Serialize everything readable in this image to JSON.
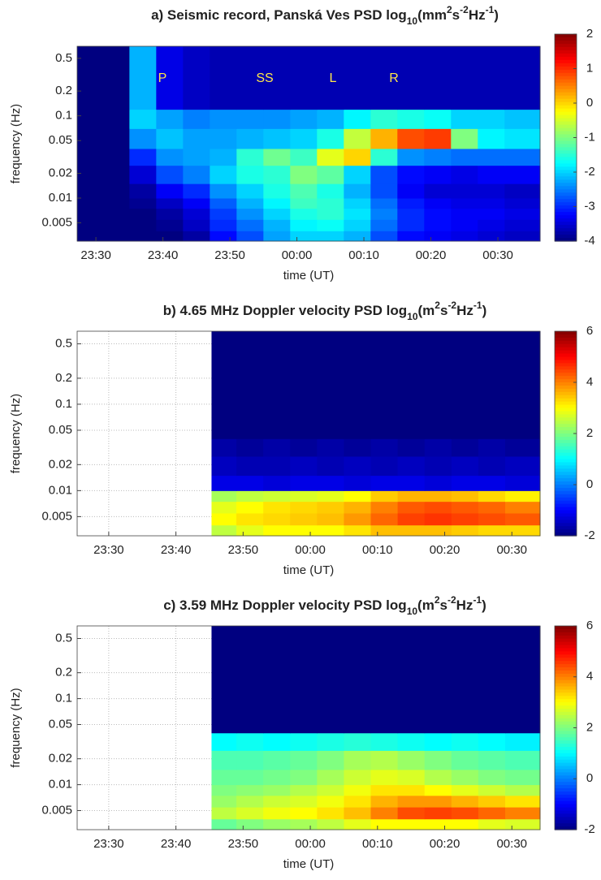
{
  "chart_data": [
    {
      "type": "heatmap",
      "title": [
        {
          "text": "a) Seismic record, Panská Ves PSD log",
          "pos": "base"
        },
        {
          "text": "10",
          "pos": "sub"
        },
        {
          "text": "(mm",
          "pos": "base"
        },
        {
          "text": "2",
          "pos": "sup"
        },
        {
          "text": "s",
          "pos": "base"
        },
        {
          "text": "-2",
          "pos": "sup"
        },
        {
          "text": "Hz",
          "pos": "base"
        },
        {
          "text": "-1",
          "pos": "sup"
        },
        {
          "text": ")",
          "pos": "base"
        }
      ],
      "x_label": "time (UT)",
      "y_label": "frequency (Hz)",
      "annotations": [
        "P",
        "SS",
        "L",
        "R"
      ],
      "xlim": [
        27.2,
        96.3
      ],
      "xticks": [
        {
          "value": 30,
          "label": "23:30"
        },
        {
          "value": 40,
          "label": "23:40"
        },
        {
          "value": 50,
          "label": "23:50"
        },
        {
          "value": 60,
          "label": "00:00"
        },
        {
          "value": 70,
          "label": "00:10"
        },
        {
          "value": 80,
          "label": "00:20"
        },
        {
          "value": 90,
          "label": "00:30"
        }
      ],
      "ylim": [
        0.003,
        0.7
      ],
      "yscale": "log",
      "yticks": [
        0.005,
        0.01,
        0.02,
        0.05,
        0.1,
        0.2,
        0.5
      ],
      "grid": true,
      "colormap": "jet",
      "clim": [
        -4,
        2
      ],
      "cticks": [
        -4,
        -3,
        -2,
        -1,
        0,
        1,
        2
      ],
      "xbins": [
        27.2,
        31,
        35,
        39,
        43,
        47,
        51,
        55,
        59,
        63,
        67,
        71,
        75,
        79,
        83,
        87,
        91,
        96.3
      ],
      "ybins": [
        0.003,
        0.004,
        0.0055,
        0.0075,
        0.01,
        0.015,
        0.025,
        0.04,
        0.07,
        0.12,
        0.7
      ],
      "values": [
        [
          -4,
          -4,
          -4,
          -4,
          -3.8,
          -3.2,
          -2.8,
          -2.3,
          -2,
          -2,
          -2.2,
          -2.8,
          -3.2,
          -3.3,
          -3.4,
          -3.5,
          -3.6
        ],
        [
          -4,
          -4,
          -4,
          -3.9,
          -3.6,
          -3,
          -2.6,
          -2.2,
          -1.8,
          -1.7,
          -2,
          -2.6,
          -3,
          -3.2,
          -3.3,
          -3.4,
          -3.5
        ],
        [
          -4,
          -4,
          -4,
          -3.8,
          -3.5,
          -2.9,
          -2.4,
          -2,
          -1.6,
          -1.5,
          -1.9,
          -2.5,
          -3,
          -3.2,
          -3.3,
          -3.3,
          -3.4
        ],
        [
          -4,
          -4,
          -3.9,
          -3.6,
          -3.3,
          -2.7,
          -2.2,
          -1.8,
          -1.4,
          -1.5,
          -2,
          -2.6,
          -3.1,
          -3.3,
          -3.4,
          -3.4,
          -3.5
        ],
        [
          -4,
          -4,
          -3.8,
          -3.3,
          -3,
          -2.4,
          -2,
          -1.6,
          -1.3,
          -1.6,
          -2.2,
          -2.8,
          -3.3,
          -3.5,
          -3.5,
          -3.5,
          -3.6
        ],
        [
          -4,
          -4,
          -3.5,
          -2.8,
          -2.5,
          -2,
          -1.6,
          -1.5,
          -1,
          -1.2,
          -2,
          -2.8,
          -3.2,
          -3.3,
          -3.4,
          -3.3,
          -3.3
        ],
        [
          -4,
          -4,
          -3,
          -2.4,
          -2.3,
          -2.2,
          -1.5,
          -1.1,
          -1.4,
          -0.4,
          0,
          -1.5,
          -2.4,
          -2.5,
          -2.6,
          -2.6,
          -2.6
        ],
        [
          -4,
          -4,
          -2.4,
          -2.1,
          -2.3,
          -2.3,
          -2.2,
          -2.1,
          -2,
          -1.6,
          -0.6,
          0.2,
          0.8,
          0.9,
          -1,
          -1.8,
          -1.9
        ],
        [
          -4,
          -4,
          -2,
          -2.3,
          -2.5,
          -2.4,
          -2.4,
          -2.4,
          -2.3,
          -2.2,
          -1.8,
          -1.5,
          -1.6,
          -1.7,
          -2,
          -2,
          -2.1
        ],
        [
          -4,
          -4,
          -2.2,
          -3.4,
          -3.6,
          -3.7,
          -3.7,
          -3.7,
          -3.7,
          -3.7,
          -3.7,
          -3.7,
          -3.7,
          -3.7,
          -3.7,
          -3.7,
          -3.7
        ]
      ]
    },
    {
      "type": "heatmap",
      "title": [
        {
          "text": "b) 4.65 MHz Doppler velocity PSD log",
          "pos": "base"
        },
        {
          "text": "10",
          "pos": "sub"
        },
        {
          "text": "(m",
          "pos": "base"
        },
        {
          "text": "2",
          "pos": "sup"
        },
        {
          "text": "s",
          "pos": "base"
        },
        {
          "text": "-2",
          "pos": "sup"
        },
        {
          "text": "Hz",
          "pos": "base"
        },
        {
          "text": "-1",
          "pos": "sup"
        },
        {
          "text": ")",
          "pos": "base"
        }
      ],
      "x_label": "time (UT)",
      "y_label": "frequency (Hz)",
      "xlim": [
        25.3,
        94.2
      ],
      "xticks": [
        {
          "value": 30,
          "label": "23:30"
        },
        {
          "value": 40,
          "label": "23:40"
        },
        {
          "value": 50,
          "label": "23:50"
        },
        {
          "value": 60,
          "label": "00:00"
        },
        {
          "value": 70,
          "label": "00:10"
        },
        {
          "value": 80,
          "label": "00:20"
        },
        {
          "value": 90,
          "label": "00:30"
        }
      ],
      "ylim": [
        0.003,
        0.7
      ],
      "yscale": "log",
      "yticks": [
        0.005,
        0.01,
        0.02,
        0.05,
        0.1,
        0.2,
        0.5
      ],
      "grid": true,
      "colormap": "jet",
      "clim": [
        -2,
        6
      ],
      "cticks": [
        -2,
        0,
        2,
        4,
        6
      ],
      "xbins": [
        45.3,
        49,
        53,
        57,
        61,
        65,
        69,
        73,
        77,
        81,
        85,
        89,
        94.2
      ],
      "ybins": [
        0.003,
        0.004,
        0.0055,
        0.0075,
        0.01,
        0.015,
        0.025,
        0.04,
        0.07,
        0.12,
        0.7
      ],
      "values": [
        [
          2.5,
          2.8,
          3,
          3,
          3,
          3.2,
          3.5,
          3.5,
          3.5,
          3.4,
          3.3,
          3.3
        ],
        [
          3,
          3.2,
          3.3,
          3.4,
          3.5,
          3.8,
          4.2,
          4.5,
          4.6,
          4.5,
          4.4,
          4.3
        ],
        [
          2.8,
          3,
          3.2,
          3.3,
          3.4,
          3.6,
          4,
          4.3,
          4.4,
          4.3,
          4.2,
          4
        ],
        [
          2.3,
          2.5,
          2.6,
          2.7,
          2.8,
          3,
          3.4,
          3.6,
          3.6,
          3.5,
          3.3,
          3.1
        ],
        [
          -1.2,
          -1.2,
          -1.3,
          -1.2,
          -1.2,
          -1.3,
          -1.2,
          -1.2,
          -1.3,
          -1.2,
          -1.2,
          -1.3
        ],
        [
          -1.5,
          -1.6,
          -1.6,
          -1.5,
          -1.6,
          -1.5,
          -1.6,
          -1.5,
          -1.6,
          -1.5,
          -1.6,
          -1.5
        ],
        [
          -1.7,
          -1.8,
          -1.7,
          -1.8,
          -1.7,
          -1.8,
          -1.7,
          -1.8,
          -1.7,
          -1.8,
          -1.7,
          -1.8
        ],
        [
          -2,
          -2,
          -2,
          -2,
          -2,
          -2,
          -2,
          -2,
          -2,
          -2,
          -2,
          -2
        ],
        [
          -2,
          -2,
          -2,
          -2,
          -2,
          -2,
          -2,
          -2,
          -2,
          -2,
          -2,
          -2
        ],
        [
          -2,
          -2,
          -2,
          -2,
          -2,
          -2,
          -2,
          -2,
          -2,
          -2,
          -2,
          -2
        ]
      ]
    },
    {
      "type": "heatmap",
      "title": [
        {
          "text": "c) 3.59 MHz Doppler velocity PSD log",
          "pos": "base"
        },
        {
          "text": "10",
          "pos": "sub"
        },
        {
          "text": "(m",
          "pos": "base"
        },
        {
          "text": "2",
          "pos": "sup"
        },
        {
          "text": "s",
          "pos": "base"
        },
        {
          "text": "-2",
          "pos": "sup"
        },
        {
          "text": "Hz",
          "pos": "base"
        },
        {
          "text": "-1",
          "pos": "sup"
        },
        {
          "text": ")",
          "pos": "base"
        }
      ],
      "x_label": "time (UT)",
      "y_label": "frequency (Hz)",
      "xlim": [
        25.3,
        94.2
      ],
      "xticks": [
        {
          "value": 30,
          "label": "23:30"
        },
        {
          "value": 40,
          "label": "23:40"
        },
        {
          "value": 50,
          "label": "23:50"
        },
        {
          "value": 60,
          "label": "00:00"
        },
        {
          "value": 70,
          "label": "00:10"
        },
        {
          "value": 80,
          "label": "00:20"
        },
        {
          "value": 90,
          "label": "00:30"
        }
      ],
      "ylim": [
        0.003,
        0.7
      ],
      "yscale": "log",
      "yticks": [
        0.005,
        0.01,
        0.02,
        0.05,
        0.1,
        0.2,
        0.5
      ],
      "grid": true,
      "colormap": "jet",
      "clim": [
        -2,
        6
      ],
      "cticks": [
        -2,
        0,
        2,
        4,
        6
      ],
      "xbins": [
        45.3,
        49,
        53,
        57,
        61,
        65,
        69,
        73,
        77,
        81,
        85,
        89,
        94.2
      ],
      "ybins": [
        0.003,
        0.004,
        0.0055,
        0.0075,
        0.01,
        0.015,
        0.025,
        0.04,
        0.07,
        0.12,
        0.7
      ],
      "values": [
        [
          1.8,
          2,
          2.2,
          2.3,
          2.5,
          2.8,
          3,
          3,
          3,
          3,
          2.8,
          2.7
        ],
        [
          2.5,
          2.7,
          2.9,
          3,
          3.2,
          3.5,
          4,
          4.4,
          4.5,
          4.4,
          4.2,
          4
        ],
        [
          2.2,
          2.4,
          2.6,
          2.7,
          2.9,
          3.2,
          3.6,
          3.8,
          3.8,
          3.6,
          3.4,
          3.2
        ],
        [
          2,
          2.1,
          2.2,
          2.4,
          2.6,
          2.9,
          3.2,
          3.2,
          3,
          2.8,
          2.6,
          2.4
        ],
        [
          1.8,
          1.8,
          1.9,
          2,
          2.3,
          2.6,
          2.8,
          2.7,
          2.4,
          2.2,
          2,
          1.9
        ],
        [
          1.6,
          1.6,
          1.7,
          1.8,
          2,
          2.3,
          2.4,
          2.2,
          2,
          1.8,
          1.7,
          1.6
        ],
        [
          1,
          1.1,
          1,
          1.1,
          1.2,
          1.3,
          1.2,
          1.1,
          1,
          1.1,
          1,
          0.9
        ],
        [
          -2,
          -2,
          -2,
          -2,
          -2,
          -2,
          -2,
          -2,
          -2,
          -2,
          -2,
          -2
        ],
        [
          -2,
          -2,
          -2,
          -2,
          -2,
          -2,
          -2,
          -2,
          -2,
          -2,
          -2,
          -2
        ],
        [
          -2,
          -2,
          -2,
          -2,
          -2,
          -2,
          -2,
          -2,
          -2,
          -2,
          -2,
          -2
        ]
      ]
    }
  ]
}
